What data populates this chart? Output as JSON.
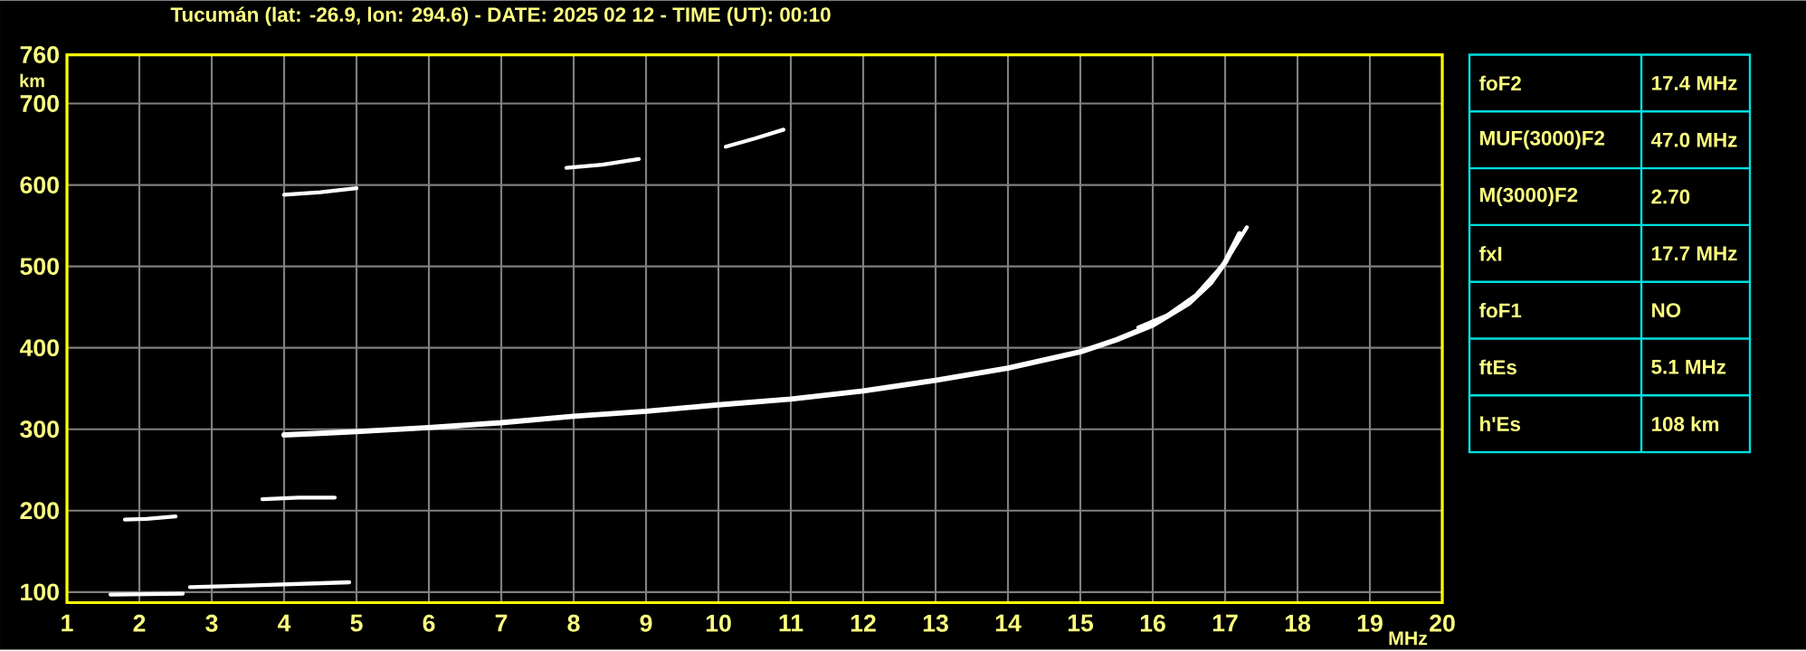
{
  "chart_data": [
    {
      "type": "line",
      "title": "Tucumán (lat: -26.9, lon: 294.6) - DATE: 2025 02 12 - TIME (UT): 00:10",
      "xlabel": "MHz",
      "ylabel": "km",
      "xlim": [
        1,
        20
      ],
      "ylim": [
        87,
        760
      ],
      "xticks": [
        1,
        2,
        3,
        4,
        5,
        6,
        7,
        8,
        9,
        10,
        11,
        12,
        13,
        14,
        15,
        16,
        17,
        18,
        19,
        20
      ],
      "yticks": [
        100,
        200,
        300,
        400,
        500,
        600,
        700,
        760
      ],
      "grid": true,
      "series": [
        {
          "color": "#ffffff",
          "x": [
            4.0,
            4.5,
            5,
            6,
            7,
            8,
            9,
            10,
            11,
            12,
            13,
            14,
            15,
            15.5,
            16,
            16.5,
            16.8,
            17.0,
            17.2
          ],
          "values": [
            293,
            295,
            297,
            302,
            308,
            316,
            322,
            330,
            337,
            347,
            360,
            375,
            395,
            410,
            428,
            455,
            480,
            505,
            540
          ]
        },
        {
          "color": "#ffffff",
          "x": [
            15.8,
            16.2,
            16.6,
            17.0,
            17.3
          ],
          "values": [
            425,
            440,
            465,
            505,
            548
          ]
        },
        {
          "color": "#ffffff",
          "x": [
            1.6,
            2.6
          ],
          "values": [
            97,
            98
          ]
        },
        {
          "color": "#ffffff",
          "x": [
            2.7,
            3.5,
            4.9
          ],
          "values": [
            106,
            108,
            112
          ]
        },
        {
          "color": "#ffffff",
          "x": [
            1.8,
            2.1,
            2.5
          ],
          "values": [
            189,
            190,
            193
          ]
        },
        {
          "color": "#ffffff",
          "x": [
            3.7,
            4.2,
            4.7
          ],
          "values": [
            214,
            216,
            216
          ]
        },
        {
          "color": "#ffffff",
          "x": [
            4.0,
            4.5,
            5.0
          ],
          "values": [
            588,
            591,
            596
          ]
        },
        {
          "color": "#ffffff",
          "x": [
            7.9,
            8.4,
            8.9
          ],
          "values": [
            621,
            625,
            632
          ]
        },
        {
          "color": "#ffffff",
          "x": [
            10.1,
            10.5,
            10.9
          ],
          "values": [
            647,
            657,
            668
          ]
        }
      ]
    },
    {
      "type": "other",
      "annotations": [
        "foF2",
        "17.4 MHz",
        "MUF(3000)F2",
        "47.0 MHz",
        "M(3000)F2",
        "2.70",
        "fxI",
        "17.7 MHz",
        "foF1",
        "NO",
        "ftEs",
        "5.1 MHz",
        "h'Es",
        "108 km"
      ]
    }
  ]
}
